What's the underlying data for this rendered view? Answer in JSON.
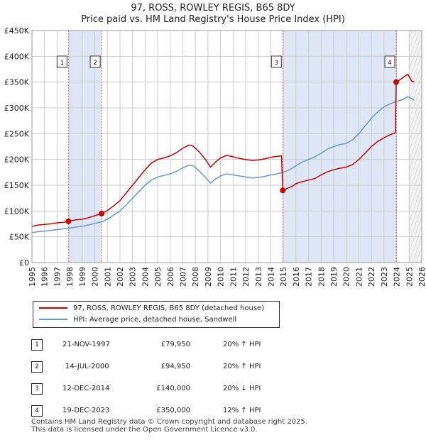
{
  "title_line1": "97, ROSS, ROWLEY REGIS, B65 8DY",
  "title_line2": "Price paid vs. HM Land Registry's House Price Index (HPI)",
  "colors": {
    "property": "#cc0000",
    "hpi": "#6699cc",
    "shade": "#dde7f5",
    "grid": "#cccccc"
  },
  "chart_data": {
    "type": "line",
    "x_range": [
      1995,
      2026
    ],
    "ylim": [
      0,
      450000
    ],
    "y_ticks": [
      {
        "value": 0,
        "label": "£0"
      },
      {
        "value": 50000,
        "label": "£50K"
      },
      {
        "value": 100000,
        "label": "£100K"
      },
      {
        "value": 150000,
        "label": "£150K"
      },
      {
        "value": 200000,
        "label": "£200K"
      },
      {
        "value": 250000,
        "label": "£250K"
      },
      {
        "value": 300000,
        "label": "£300K"
      },
      {
        "value": 350000,
        "label": "£350K"
      },
      {
        "value": 400000,
        "label": "£400K"
      },
      {
        "value": 450000,
        "label": "£450K"
      }
    ],
    "x_ticks": [
      "1995",
      "1996",
      "1997",
      "1998",
      "1999",
      "2000",
      "2001",
      "2002",
      "2003",
      "2004",
      "2005",
      "2006",
      "2007",
      "2008",
      "2009",
      "2010",
      "2011",
      "2012",
      "2013",
      "2014",
      "2015",
      "2016",
      "2017",
      "2018",
      "2019",
      "2020",
      "2021",
      "2022",
      "2023",
      "2024",
      "2025",
      "2026"
    ],
    "future_from": 2025.0,
    "shaded_periods": [
      [
        1997.9,
        2000.54
      ],
      [
        2014.95,
        2023.97
      ]
    ],
    "series": [
      {
        "name": "97, ROSS, ROWLEY REGIS, B65 8DY (detached house)",
        "color": "#cc0000",
        "points": [
          [
            1995.0,
            70000
          ],
          [
            1995.5,
            73000
          ],
          [
            1996.0,
            74000
          ],
          [
            1996.5,
            75000
          ],
          [
            1997.0,
            77000
          ],
          [
            1997.5,
            78000
          ],
          [
            1997.9,
            79950
          ],
          [
            1998.5,
            83000
          ],
          [
            1999.0,
            84000
          ],
          [
            1999.5,
            87000
          ],
          [
            2000.0,
            91000
          ],
          [
            2000.54,
            94950
          ],
          [
            2001.0,
            101000
          ],
          [
            2001.5,
            110000
          ],
          [
            2002.0,
            120000
          ],
          [
            2002.5,
            135000
          ],
          [
            2003.0,
            150000
          ],
          [
            2003.5,
            165000
          ],
          [
            2004.0,
            180000
          ],
          [
            2004.5,
            193000
          ],
          [
            2005.0,
            200000
          ],
          [
            2005.5,
            203000
          ],
          [
            2006.0,
            207000
          ],
          [
            2006.5,
            213000
          ],
          [
            2007.0,
            222000
          ],
          [
            2007.5,
            228000
          ],
          [
            2007.8,
            226000
          ],
          [
            2008.3,
            215000
          ],
          [
            2008.8,
            200000
          ],
          [
            2009.2,
            185000
          ],
          [
            2009.6,
            195000
          ],
          [
            2010.0,
            203000
          ],
          [
            2010.5,
            208000
          ],
          [
            2011.0,
            205000
          ],
          [
            2011.5,
            202000
          ],
          [
            2012.0,
            200000
          ],
          [
            2012.5,
            198000
          ],
          [
            2013.0,
            199000
          ],
          [
            2013.5,
            201000
          ],
          [
            2014.0,
            204000
          ],
          [
            2014.5,
            206000
          ],
          [
            2014.85,
            207000
          ],
          [
            2014.95,
            140000
          ],
          [
            2015.3,
            144000
          ],
          [
            2015.7,
            148000
          ],
          [
            2016.0,
            153000
          ],
          [
            2016.5,
            157000
          ],
          [
            2017.0,
            160000
          ],
          [
            2017.5,
            163000
          ],
          [
            2018.0,
            170000
          ],
          [
            2018.5,
            176000
          ],
          [
            2019.0,
            180000
          ],
          [
            2019.5,
            183000
          ],
          [
            2020.0,
            185000
          ],
          [
            2020.5,
            190000
          ],
          [
            2021.0,
            200000
          ],
          [
            2021.5,
            212000
          ],
          [
            2022.0,
            225000
          ],
          [
            2022.5,
            235000
          ],
          [
            2023.0,
            242000
          ],
          [
            2023.5,
            248000
          ],
          [
            2023.9,
            252000
          ],
          [
            2023.97,
            350000
          ],
          [
            2024.3,
            355000
          ],
          [
            2024.7,
            362000
          ],
          [
            2024.9,
            365000
          ],
          [
            2025.2,
            352000
          ],
          [
            2025.4,
            350000
          ]
        ]
      },
      {
        "name": "HPI: Average price, detached house, Sandwell",
        "color": "#6699cc",
        "points": [
          [
            1995.0,
            58000
          ],
          [
            1995.5,
            60000
          ],
          [
            1996.0,
            61000
          ],
          [
            1996.5,
            62500
          ],
          [
            1997.0,
            64000
          ],
          [
            1997.5,
            65500
          ],
          [
            1997.9,
            66600
          ],
          [
            1998.5,
            69000
          ],
          [
            1999.0,
            70500
          ],
          [
            1999.5,
            73000
          ],
          [
            2000.0,
            76000
          ],
          [
            2000.54,
            79100
          ],
          [
            2001.0,
            84000
          ],
          [
            2001.5,
            92000
          ],
          [
            2002.0,
            100000
          ],
          [
            2002.5,
            112000
          ],
          [
            2003.0,
            125000
          ],
          [
            2003.5,
            137000
          ],
          [
            2004.0,
            150000
          ],
          [
            2004.5,
            160000
          ],
          [
            2005.0,
            166000
          ],
          [
            2005.5,
            169000
          ],
          [
            2006.0,
            172000
          ],
          [
            2006.5,
            177000
          ],
          [
            2007.0,
            184000
          ],
          [
            2007.5,
            189000
          ],
          [
            2007.8,
            188000
          ],
          [
            2008.3,
            178000
          ],
          [
            2008.8,
            165000
          ],
          [
            2009.2,
            154000
          ],
          [
            2009.6,
            162000
          ],
          [
            2010.0,
            168000
          ],
          [
            2010.5,
            172000
          ],
          [
            2011.0,
            170000
          ],
          [
            2011.5,
            168000
          ],
          [
            2012.0,
            166000
          ],
          [
            2012.5,
            164000
          ],
          [
            2013.0,
            165000
          ],
          [
            2013.5,
            167000
          ],
          [
            2014.0,
            170000
          ],
          [
            2014.5,
            172000
          ],
          [
            2014.95,
            175000
          ],
          [
            2015.5,
            180000
          ],
          [
            2016.0,
            188000
          ],
          [
            2016.5,
            195000
          ],
          [
            2017.0,
            200000
          ],
          [
            2017.5,
            205000
          ],
          [
            2018.0,
            212000
          ],
          [
            2018.5,
            220000
          ],
          [
            2019.0,
            225000
          ],
          [
            2019.5,
            229000
          ],
          [
            2020.0,
            231000
          ],
          [
            2020.5,
            238000
          ],
          [
            2021.0,
            250000
          ],
          [
            2021.5,
            265000
          ],
          [
            2022.0,
            280000
          ],
          [
            2022.5,
            292000
          ],
          [
            2023.0,
            302000
          ],
          [
            2023.5,
            308000
          ],
          [
            2023.97,
            312500
          ],
          [
            2024.5,
            316000
          ],
          [
            2024.9,
            322000
          ],
          [
            2025.2,
            318000
          ],
          [
            2025.4,
            315000
          ]
        ]
      }
    ],
    "markers": [
      {
        "label": "1",
        "x": 1997.9,
        "y": 79950
      },
      {
        "label": "2",
        "x": 2000.54,
        "y": 94950
      },
      {
        "label": "3",
        "x": 2014.95,
        "y": 140000
      },
      {
        "label": "4",
        "x": 2023.97,
        "y": 350000
      }
    ]
  },
  "legend": {
    "property_label": "97, ROSS, ROWLEY REGIS, B65 8DY (detached house)",
    "hpi_label": "HPI: Average price, detached house, Sandwell"
  },
  "sales": [
    {
      "num": "1",
      "date": "21-NOV-1997",
      "price": "£79,950",
      "hpi": "20% ↑ HPI"
    },
    {
      "num": "2",
      "date": "14-JUL-2000",
      "price": "£94,950",
      "hpi": "20% ↑ HPI"
    },
    {
      "num": "3",
      "date": "12-DEC-2014",
      "price": "£140,000",
      "hpi": "20% ↓ HPI"
    },
    {
      "num": "4",
      "date": "19-DEC-2023",
      "price": "£350,000",
      "hpi": "12% ↑ HPI"
    }
  ],
  "footer": {
    "line1": "Contains HM Land Registry data © Crown copyright and database right 2025.",
    "line2": "This data is licensed under the Open Government Licence v3.0."
  }
}
